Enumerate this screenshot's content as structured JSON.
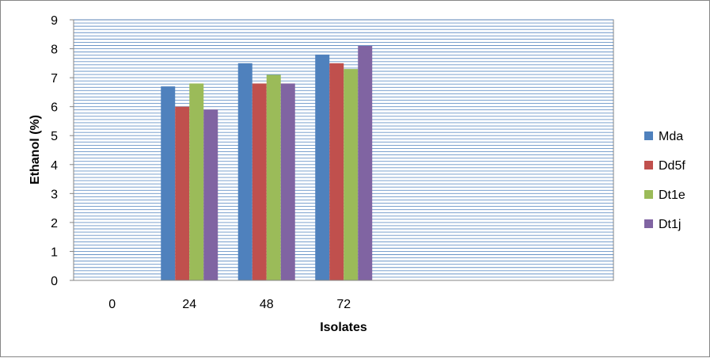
{
  "chart_data": {
    "type": "bar",
    "categories": [
      "0",
      "24",
      "48",
      "72"
    ],
    "series": [
      {
        "name": "Mda",
        "color": "#4f81bd",
        "values": [
          0,
          6.7,
          7.5,
          7.8
        ]
      },
      {
        "name": "Dd5f",
        "color": "#c0504d",
        "values": [
          0,
          6.0,
          6.8,
          7.5
        ]
      },
      {
        "name": "Dt1e",
        "color": "#9bbb59",
        "values": [
          0,
          6.8,
          7.1,
          7.3
        ]
      },
      {
        "name": "Dt1j",
        "color": "#8064a2",
        "values": [
          0,
          5.9,
          6.8,
          8.1
        ]
      }
    ],
    "xlabel": "Isolates",
    "ylabel": "Ethanol (%)",
    "ylim": [
      0,
      9
    ],
    "yticks": [
      0,
      1,
      2,
      3,
      4,
      5,
      6,
      7,
      8,
      9
    ],
    "grid": true,
    "gridline_color": "#4f81bd",
    "legend_position": "right"
  }
}
